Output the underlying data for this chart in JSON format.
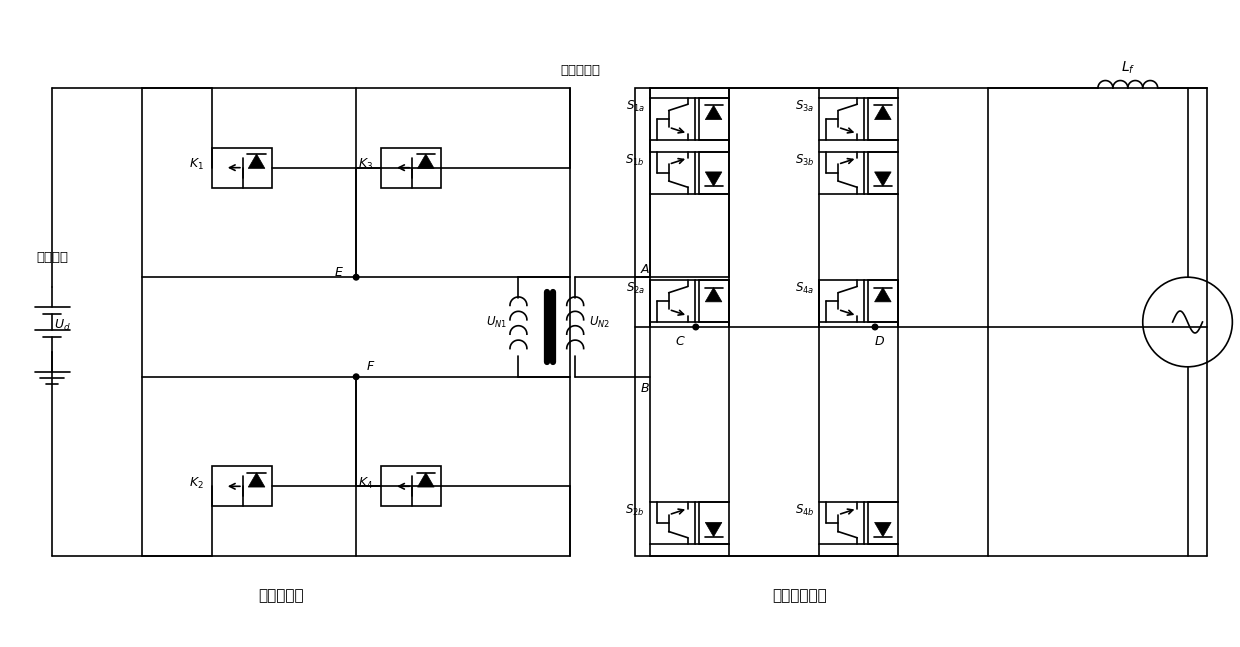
{
  "bg": "#ffffff",
  "lc": "#000000",
  "lw": 1.2,
  "figsize": [
    12.4,
    6.47
  ],
  "dpi": 100,
  "xlim": [
    0,
    124
  ],
  "ylim": [
    0,
    64.7
  ],
  "labels": {
    "dc": "直流电源",
    "ud": "$U_d$",
    "transformer": "高频变压器",
    "un1": "$U_{N1}$",
    "un2": "$U_{N2}$",
    "front_inv": "前级逆变器",
    "matrix_conv": "矩阵式变换器",
    "Lf": "$L_f$",
    "E": "$E$",
    "F": "$F$",
    "A": "$A$",
    "B": "$B$",
    "C": "$C$",
    "D": "$D$",
    "K1": "$K_1$",
    "K2": "$K_2$",
    "K3": "$K_3$",
    "K4": "$K_4$",
    "S1a": "$S_{1a}$",
    "S1b": "$S_{1b}$",
    "S2a": "$S_{2a}$",
    "S2b": "$S_{2b}$",
    "S3a": "$S_{3a}$",
    "S3b": "$S_{3b}$",
    "S4a": "$S_{4a}$",
    "S4b": "$S_{4b}$"
  }
}
